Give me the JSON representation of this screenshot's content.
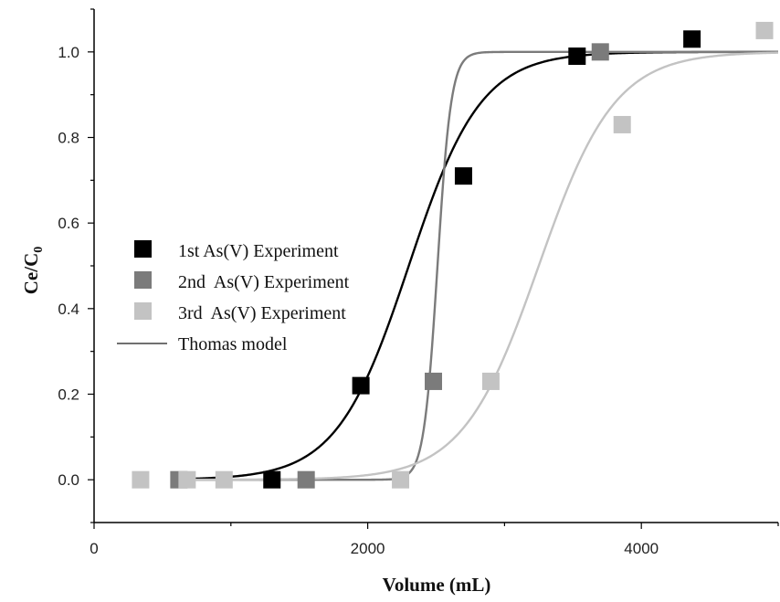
{
  "chart_data": {
    "type": "scatter",
    "title": "",
    "xlabel": "Volume (mL)",
    "ylabel_main": "Ce/C",
    "ylabel_sub": "0",
    "xlim": [
      0,
      5000
    ],
    "ylim": [
      -0.1,
      1.1
    ],
    "x_ticks": [
      0,
      2000,
      4000
    ],
    "x_tick_labels": [
      "0",
      "2000",
      "4000"
    ],
    "y_ticks": [
      0.0,
      0.2,
      0.4,
      0.6,
      0.8,
      1.0
    ],
    "y_tick_labels": [
      "0.0",
      "0.2",
      "0.4",
      "0.6",
      "0.8",
      "1.0"
    ],
    "grid": false,
    "legend_position": "center-left",
    "series": [
      {
        "name": "1st As(V) Experiment",
        "color": "#000000",
        "x": [
          1300,
          1950,
          2700,
          3530,
          4370
        ],
        "y": [
          0.0,
          0.22,
          0.71,
          0.99,
          1.03
        ]
      },
      {
        "name": "2nd  As(V) Experiment",
        "color": "#7b7b7b",
        "x": [
          620,
          1550,
          2480,
          3700
        ],
        "y": [
          0.0,
          0.0,
          0.23,
          1.0
        ]
      },
      {
        "name": "3rd  As(V) Experiment",
        "color": "#c3c3c3",
        "x": [
          340,
          680,
          950,
          2240,
          2900,
          3860,
          4900
        ],
        "y": [
          0.0,
          0.0,
          0.0,
          0.0,
          0.23,
          0.83,
          1.05
        ]
      }
    ],
    "model": {
      "name": "Thomas model",
      "legend_color": "#707070",
      "curves": [
        {
          "color": "#000000",
          "k": 0.0038,
          "x0": 2300
        },
        {
          "color": "#7b7b7b",
          "k": 0.02,
          "x0": 2510
        },
        {
          "color": "#c3c3c3",
          "k": 0.0036,
          "x0": 3250
        }
      ],
      "x_start": 650,
      "x_end": 5000
    }
  }
}
